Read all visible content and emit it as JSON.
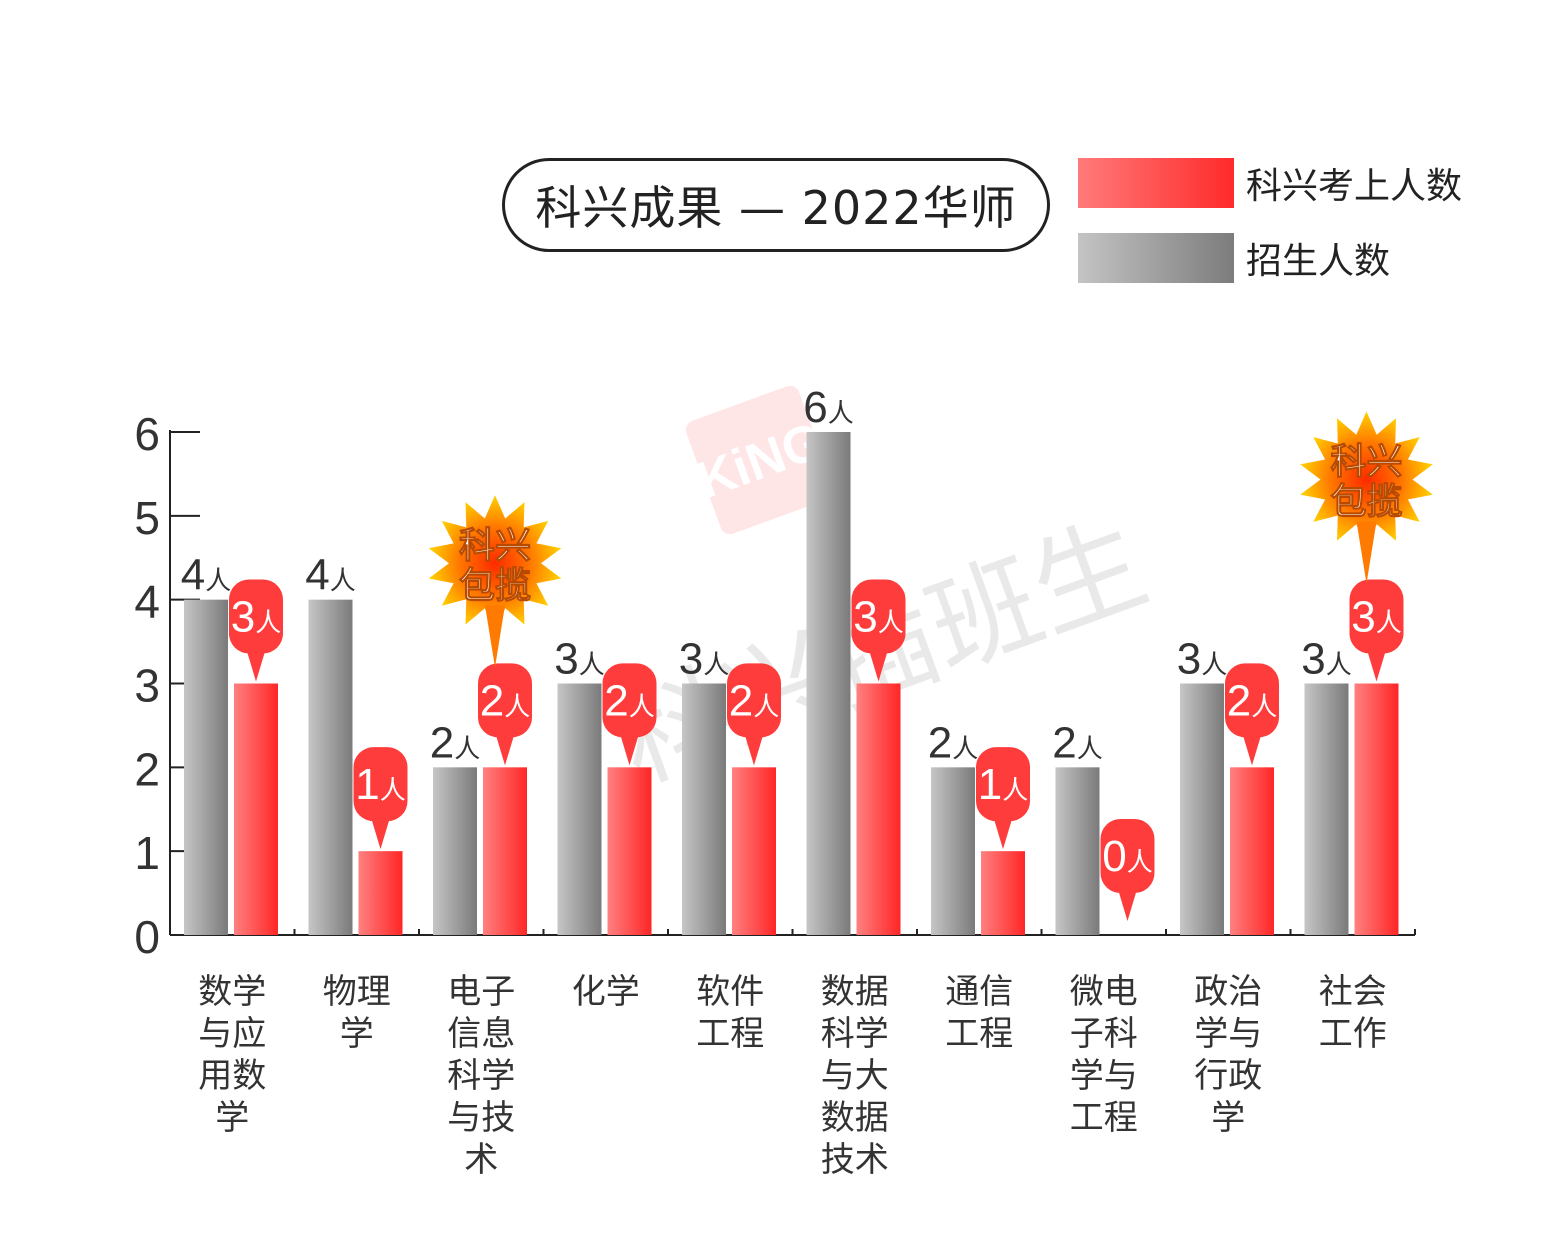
{
  "title": "科兴成果 — 2022华师",
  "watermark": {
    "logo": "KiNG",
    "text": "科兴插班生"
  },
  "legend": [
    {
      "label": "科兴考上人数",
      "color": "#ff3c3c"
    },
    {
      "label": "招生人数",
      "color": "#8a8a8a"
    }
  ],
  "burst_label": [
    "科兴",
    "包揽"
  ],
  "unit": "人",
  "chart_data": {
    "type": "bar",
    "categories": [
      "数学与应用数学",
      "物理学",
      "电子信息科学与技术",
      "化学",
      "软件工程",
      "数据科学与大数据技术",
      "通信工程",
      "微电子科学与工程",
      "政治学与行政学",
      "社会工作"
    ],
    "category_lines": [
      [
        "数学",
        "与应",
        "用数",
        "学"
      ],
      [
        "物理",
        "学"
      ],
      [
        "电子",
        "信息",
        "科学",
        "与技",
        "术"
      ],
      [
        "化学"
      ],
      [
        "软件",
        "工程"
      ],
      [
        "数据",
        "科学",
        "与大",
        "数据",
        "技术"
      ],
      [
        "通信",
        "工程"
      ],
      [
        "微电",
        "子科",
        "学与",
        "工程"
      ],
      [
        "政治",
        "学与",
        "行政",
        "学"
      ],
      [
        "社会",
        "工作"
      ]
    ],
    "series": [
      {
        "name": "招生人数",
        "values": [
          4,
          4,
          2,
          3,
          3,
          6,
          2,
          2,
          3,
          3
        ],
        "color": "#8a8a8a"
      },
      {
        "name": "科兴考上人数",
        "values": [
          3,
          1,
          2,
          2,
          2,
          3,
          1,
          0,
          2,
          3
        ],
        "color": "#ff3c3c"
      }
    ],
    "highlight_categories": [
      "电子信息科学与技术",
      "社会工作"
    ],
    "ylim": [
      0,
      6
    ],
    "yticks": [
      0,
      1,
      2,
      3,
      4,
      5,
      6
    ],
    "xlabel": "",
    "ylabel": "",
    "grid": false,
    "legend_position": "top-right"
  }
}
